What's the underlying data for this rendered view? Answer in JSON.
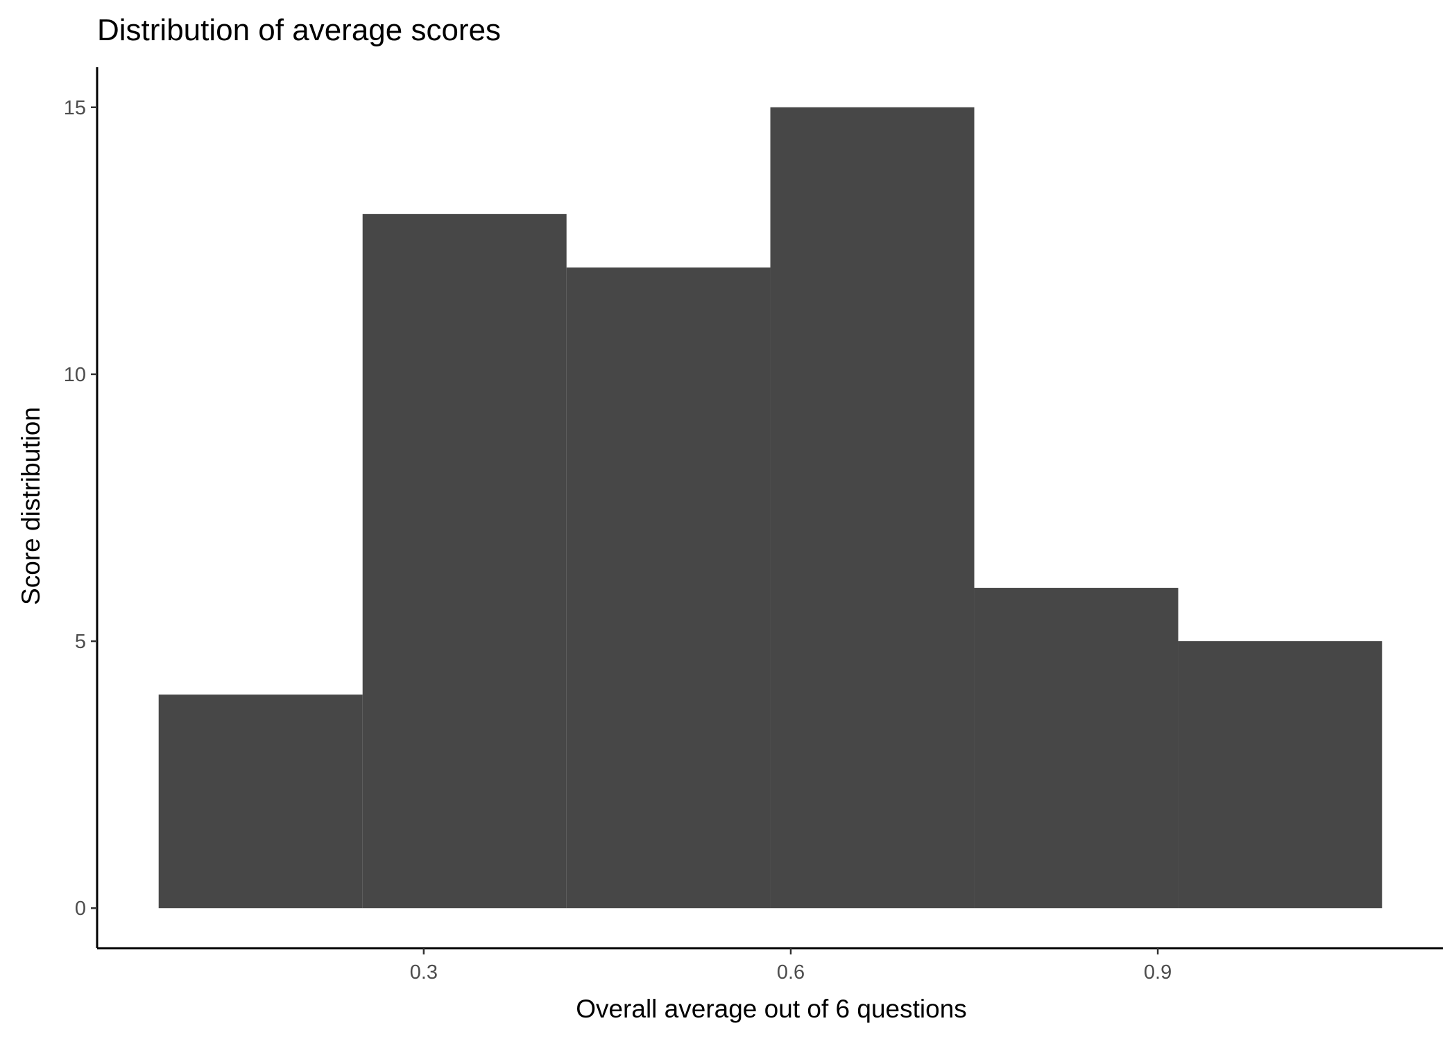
{
  "chart_data": {
    "type": "bar",
    "title": "Distribution of average scores",
    "xlabel": "Overall average out of 6 questions",
    "ylabel": "Score distribution",
    "bins": [
      {
        "x0": 0.0833,
        "x1": 0.25,
        "count": 4
      },
      {
        "x0": 0.25,
        "x1": 0.4167,
        "count": 13
      },
      {
        "x0": 0.4167,
        "x1": 0.5833,
        "count": 12
      },
      {
        "x0": 0.5833,
        "x1": 0.75,
        "count": 15
      },
      {
        "x0": 0.75,
        "x1": 0.9167,
        "count": 6
      },
      {
        "x0": 0.9167,
        "x1": 1.0833,
        "count": 5
      }
    ],
    "x_ticks": [
      0.3,
      0.6,
      0.9
    ],
    "x_tick_labels": [
      "0.3",
      "0.6",
      "0.9"
    ],
    "y_ticks": [
      0,
      5,
      10,
      15
    ],
    "y_tick_labels": [
      "0",
      "5",
      "10",
      "15"
    ],
    "xlim": [
      0.033,
      1.133
    ],
    "ylim": [
      -0.75,
      15.75
    ],
    "bar_color": "#474747",
    "grid": false,
    "legend": "none"
  }
}
